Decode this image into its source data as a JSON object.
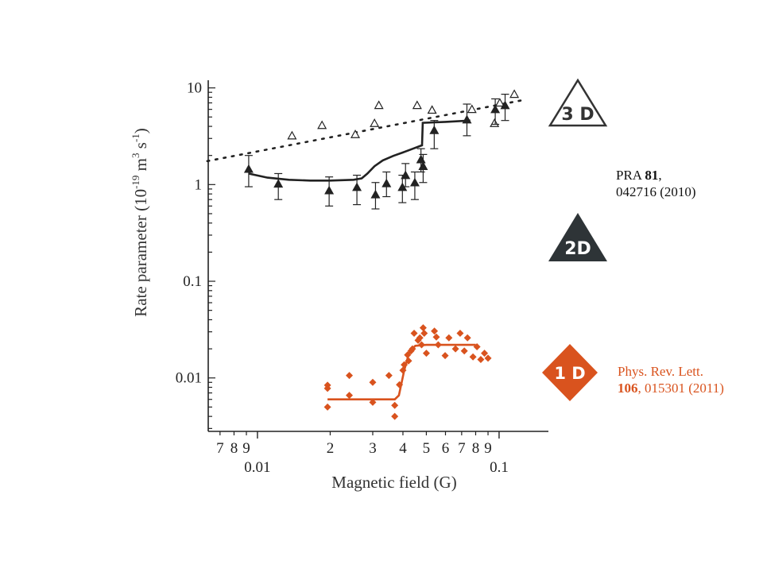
{
  "chart_data": {
    "type": "scatter",
    "title": "",
    "xlabel": "Magnetic field (G)",
    "ylabel": "Rate parameter (10",
    "ylabel_exp1": "-19",
    "ylabel_mid": " m",
    "ylabel_exp2": "3",
    "ylabel_s": " s",
    "ylabel_exp3": "-1",
    "ylabel_end": ")",
    "x_scale": "log",
    "y_scale": "log",
    "xlim": [
      0.0064,
      0.16
    ],
    "ylim": [
      0.0028,
      12
    ],
    "x_ticks": [
      {
        "value": 0.007,
        "label": "7"
      },
      {
        "value": 0.008,
        "label": "8"
      },
      {
        "value": 0.009,
        "label": "9"
      },
      {
        "value": 0.02,
        "label": "2"
      },
      {
        "value": 0.03,
        "label": "3"
      },
      {
        "value": 0.04,
        "label": "4"
      },
      {
        "value": 0.05,
        "label": "5"
      },
      {
        "value": 0.06,
        "label": "6"
      },
      {
        "value": 0.07,
        "label": "7"
      },
      {
        "value": 0.08,
        "label": "8"
      },
      {
        "value": 0.09,
        "label": "9"
      }
    ],
    "x_decade_labels": [
      {
        "value": 0.01,
        "label": "0.01"
      },
      {
        "value": 0.1,
        "label": "0.1"
      }
    ],
    "y_ticks": [
      {
        "value": 10,
        "label": "10"
      },
      {
        "value": 1,
        "label": "1"
      },
      {
        "value": 0.1,
        "label": "0.1"
      },
      {
        "value": 0.01,
        "label": "0.01"
      }
    ],
    "series": [
      {
        "kind": "open-triangles",
        "color": "#222222",
        "points": [
          [
            0.0139,
            3.2
          ],
          [
            0.0185,
            4.1
          ],
          [
            0.0254,
            3.3
          ],
          [
            0.0305,
            4.3
          ],
          [
            0.0318,
            6.6
          ],
          [
            0.0458,
            6.6
          ],
          [
            0.0528,
            5.9
          ],
          [
            0.0772,
            6.0
          ],
          [
            0.0957,
            4.3
          ],
          [
            0.1007,
            7.0
          ],
          [
            0.1156,
            8.6
          ]
        ]
      },
      {
        "kind": "filled-triangles",
        "color": "#222222",
        "points": [
          [
            0.0092,
            1.45,
            0.95,
            2.0
          ],
          [
            0.0122,
            1.02,
            0.7,
            1.3
          ],
          [
            0.0198,
            0.87,
            0.6,
            1.2
          ],
          [
            0.0258,
            0.94,
            0.62,
            1.25
          ],
          [
            0.0308,
            0.79,
            0.56,
            1.05
          ],
          [
            0.0342,
            1.03,
            0.75,
            1.35
          ],
          [
            0.0398,
            0.94,
            0.65,
            1.25
          ],
          [
            0.041,
            1.25,
            0.95,
            1.65
          ],
          [
            0.0448,
            1.05,
            0.7,
            1.35
          ],
          [
            0.0475,
            1.82,
            1.35,
            2.35
          ],
          [
            0.0485,
            1.55,
            1.05,
            2.05
          ],
          [
            0.0539,
            3.65,
            2.35,
            4.6
          ],
          [
            0.0736,
            4.7,
            3.2,
            6.8
          ],
          [
            0.0964,
            6.0,
            4.2,
            7.7
          ],
          [
            0.1059,
            6.6,
            4.6,
            8.6
          ]
        ]
      },
      {
        "kind": "orange-diamonds",
        "color": "#d9531e",
        "points": [
          [
            0.0195,
            0.0084
          ],
          [
            0.0195,
            0.0078
          ],
          [
            0.0195,
            0.005
          ],
          [
            0.024,
            0.0106
          ],
          [
            0.024,
            0.0066
          ],
          [
            0.03,
            0.009
          ],
          [
            0.03,
            0.0056
          ],
          [
            0.035,
            0.0106
          ],
          [
            0.037,
            0.0052
          ],
          [
            0.037,
            0.004
          ],
          [
            0.0387,
            0.0085
          ],
          [
            0.04,
            0.012
          ],
          [
            0.0405,
            0.0137
          ],
          [
            0.0418,
            0.0173
          ],
          [
            0.0422,
            0.015
          ],
          [
            0.0432,
            0.019
          ],
          [
            0.0438,
            0.02
          ],
          [
            0.0445,
            0.029
          ],
          [
            0.0462,
            0.0245
          ],
          [
            0.047,
            0.026
          ],
          [
            0.0478,
            0.022
          ],
          [
            0.0485,
            0.033
          ],
          [
            0.049,
            0.029
          ],
          [
            0.05,
            0.018
          ],
          [
            0.054,
            0.0305
          ],
          [
            0.055,
            0.0265
          ],
          [
            0.056,
            0.022
          ],
          [
            0.0598,
            0.017
          ],
          [
            0.062,
            0.026
          ],
          [
            0.066,
            0.02
          ],
          [
            0.069,
            0.029
          ],
          [
            0.0718,
            0.019
          ],
          [
            0.074,
            0.026
          ],
          [
            0.078,
            0.0165
          ],
          [
            0.081,
            0.021
          ],
          [
            0.084,
            0.0155
          ],
          [
            0.087,
            0.018
          ],
          [
            0.09,
            0.016
          ]
        ]
      }
    ],
    "curves": [
      {
        "kind": "solid-black",
        "color": "#222222",
        "points": [
          [
            0.0092,
            1.3
          ],
          [
            0.011,
            1.18
          ],
          [
            0.0135,
            1.12
          ],
          [
            0.0165,
            1.1
          ],
          [
            0.02,
            1.1
          ],
          [
            0.025,
            1.12
          ],
          [
            0.027,
            1.16
          ],
          [
            0.0285,
            1.3
          ],
          [
            0.0305,
            1.55
          ],
          [
            0.033,
            1.78
          ],
          [
            0.0365,
            1.98
          ],
          [
            0.04,
            2.15
          ],
          [
            0.044,
            2.35
          ],
          [
            0.047,
            2.5
          ],
          [
            0.048,
            2.55
          ],
          [
            0.0483,
            4.35
          ],
          [
            0.06,
            4.45
          ],
          [
            0.07,
            4.55
          ],
          [
            0.076,
            4.6
          ]
        ]
      },
      {
        "kind": "dotted-black",
        "color": "#222222",
        "points": [
          [
            0.0062,
            1.75
          ],
          [
            0.13,
            7.6
          ]
        ]
      },
      {
        "kind": "solid-orange",
        "color": "#d9531e",
        "points": [
          [
            0.0195,
            0.006
          ],
          [
            0.03,
            0.006
          ],
          [
            0.037,
            0.006
          ],
          [
            0.0385,
            0.0066
          ],
          [
            0.0405,
            0.012
          ],
          [
            0.0425,
            0.0185
          ],
          [
            0.045,
            0.0215
          ],
          [
            0.05,
            0.022
          ],
          [
            0.06,
            0.022
          ],
          [
            0.08,
            0.022
          ]
        ]
      }
    ]
  },
  "badges": {
    "three_d": {
      "label": "3 D",
      "fill": "#ffffff",
      "stroke": "#333333",
      "text": "#333333"
    },
    "two_d": {
      "label": "2D",
      "fill": "#2e3437",
      "text": "#ffffff"
    },
    "one_d": {
      "label": "1 D",
      "fill": "#d9531e",
      "text": "#ffffff"
    }
  },
  "references": {
    "pra": {
      "prefix": "PRA ",
      "volume": "81",
      "suffix": ",",
      "line2": "042716 (2010)",
      "color": "#111111"
    },
    "prl": {
      "line1": "Phys. Rev. Lett.",
      "volume": "106",
      "suffix": ", 015301 (2011)",
      "color": "#d9531e"
    }
  }
}
